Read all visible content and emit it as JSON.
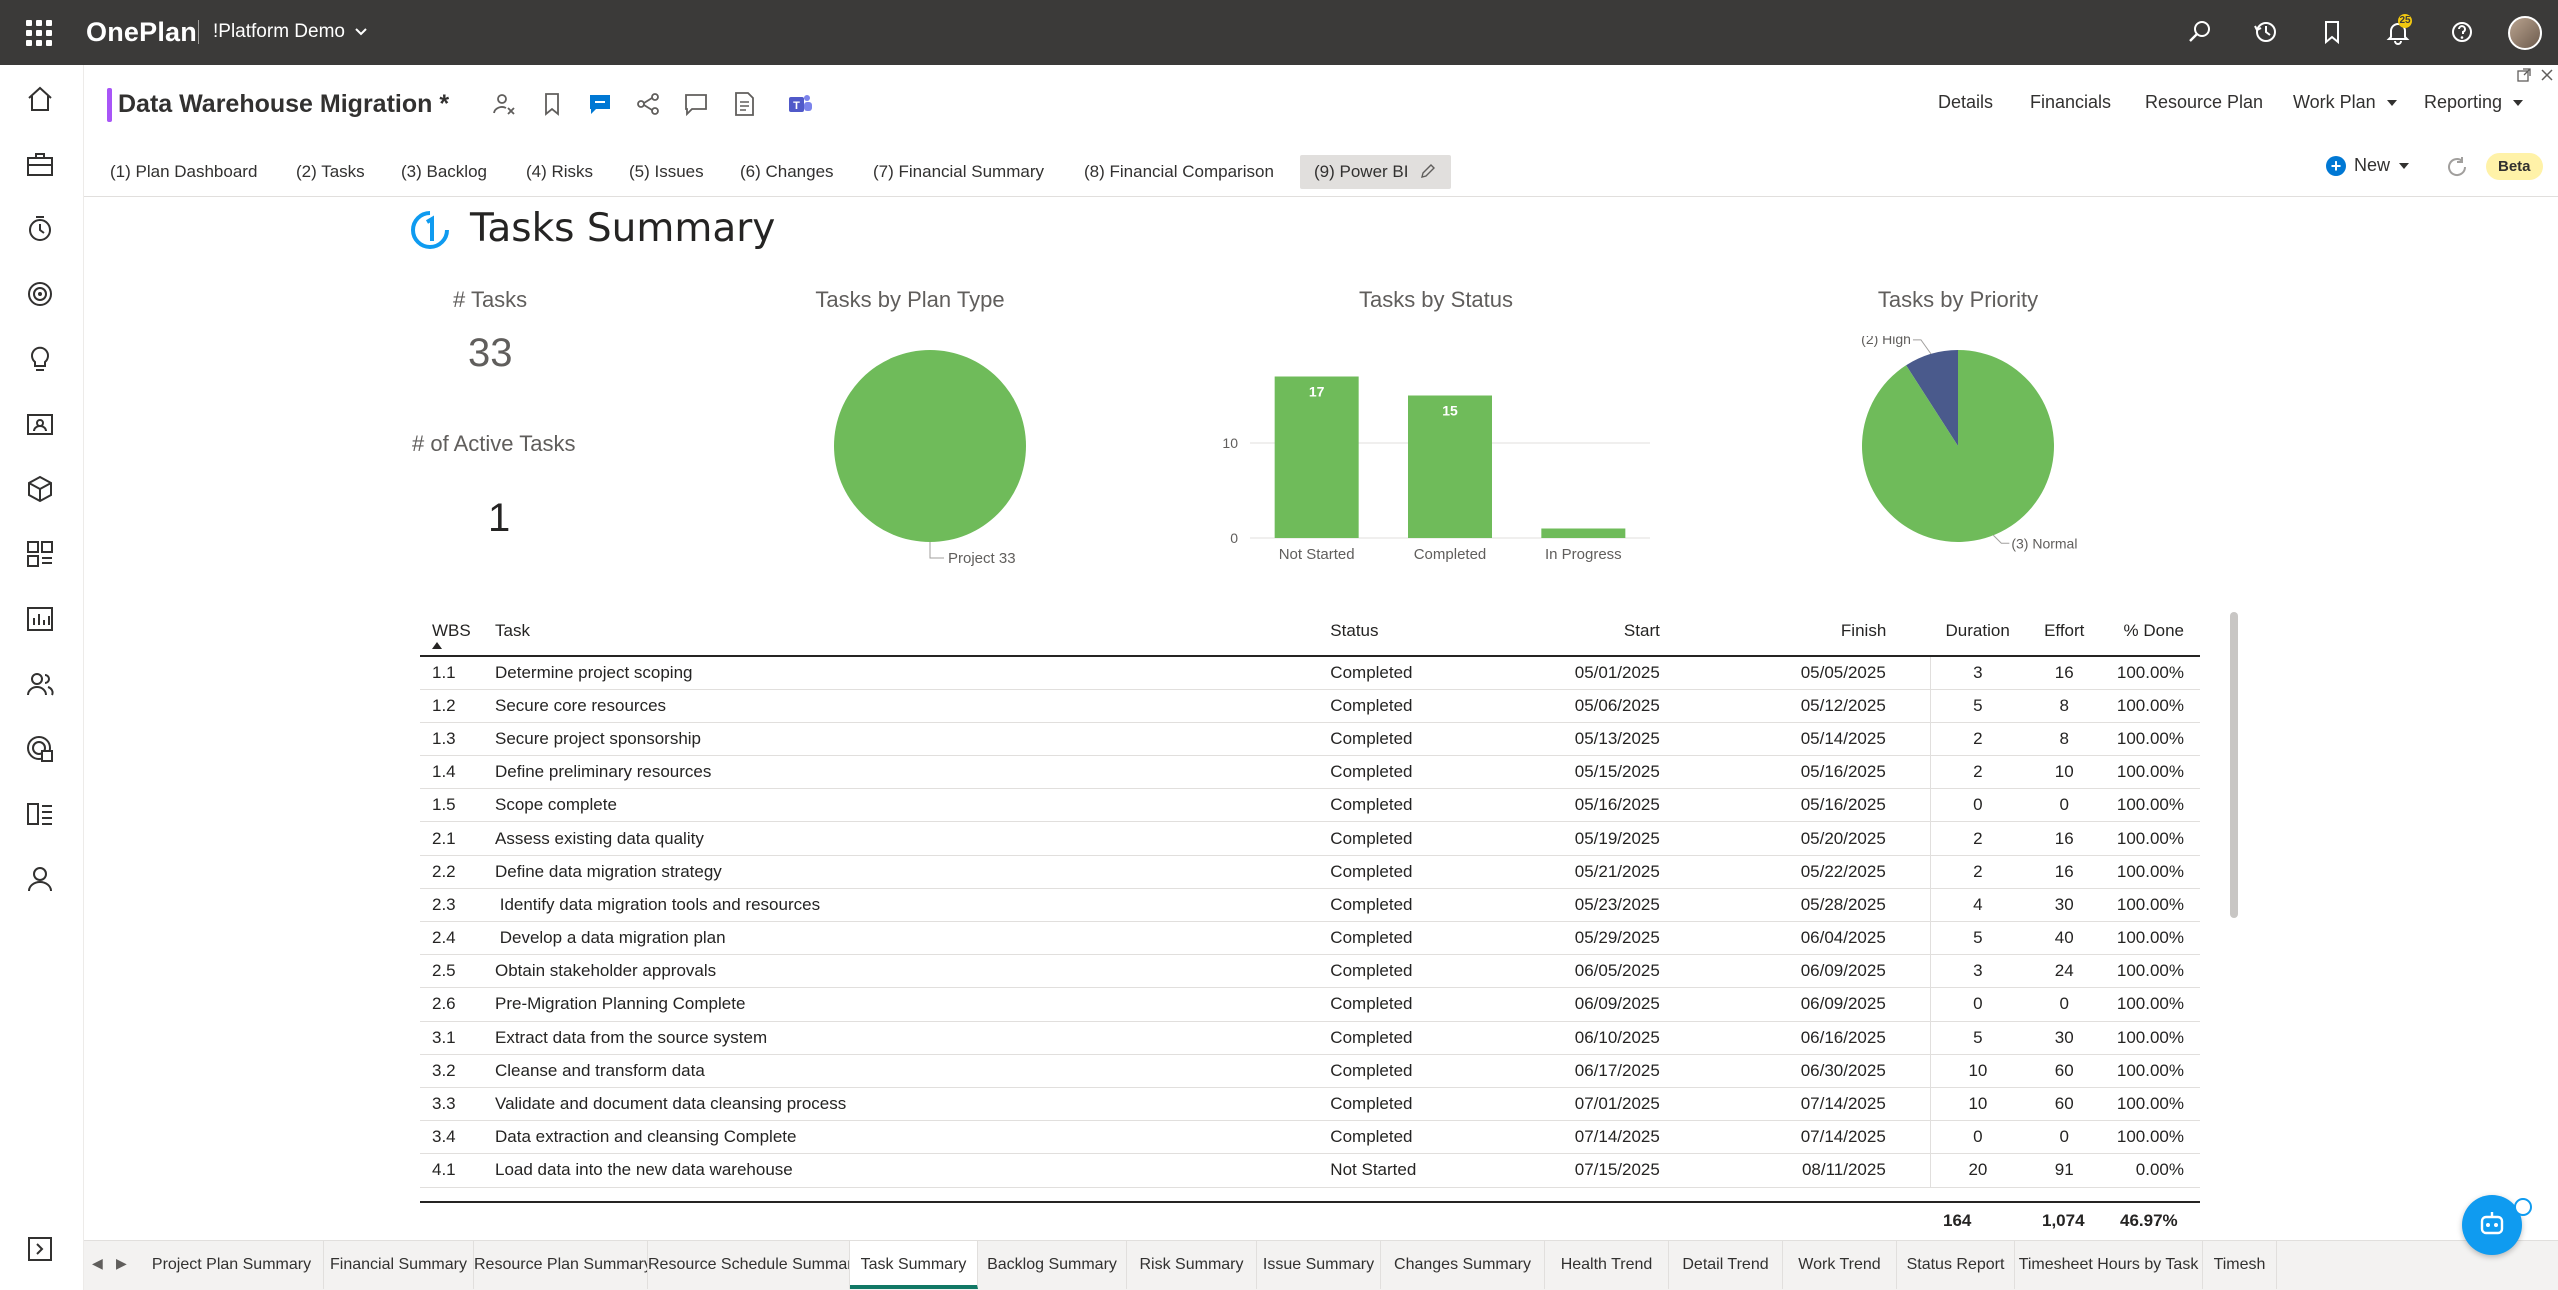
{
  "app": {
    "brand": "OnePlan",
    "tenant": "!Platform Demo",
    "notification_count": "25"
  },
  "plan": {
    "title": "Data Warehouse Migration *",
    "nav": [
      {
        "label": "Details"
      },
      {
        "label": "Financials"
      },
      {
        "label": "Resource Plan"
      },
      {
        "label": "Work Plan"
      },
      {
        "label": "Reporting"
      }
    ]
  },
  "report_tabs": [
    "(1) Plan Dashboard",
    "(2) Tasks",
    "(3) Backlog",
    "(4) Risks",
    "(5) Issues",
    "(6) Changes",
    "(7) Financial Summary",
    "(8) Financial Comparison",
    "(9) Power BI"
  ],
  "toolbar": {
    "new_label": "New",
    "beta_label": "Beta"
  },
  "report": {
    "title": "Tasks Summary",
    "kpis": {
      "tasks_label": "# Tasks",
      "tasks_value": "33",
      "active_label": "# of Active Tasks",
      "active_value": "1"
    },
    "chart_titles": {
      "plan_type": "Tasks by Plan Type",
      "status": "Tasks by Status",
      "priority": "Tasks by Priority"
    }
  },
  "chart_data": [
    {
      "type": "pie",
      "title": "Tasks by Plan Type",
      "labels": [
        "Project"
      ],
      "values": [
        33
      ],
      "colors": [
        "#6fbb5a"
      ]
    },
    {
      "type": "bar",
      "title": "Tasks by Status",
      "categories": [
        "Not Started",
        "Completed",
        "In Progress"
      ],
      "values": [
        17,
        15,
        1
      ],
      "yticks": [
        "0",
        "10"
      ],
      "ylim": [
        0,
        20
      ],
      "color": "#6fbb5a"
    },
    {
      "type": "pie",
      "title": "Tasks by Priority",
      "labels": [
        "(2) High",
        "(3) Normal"
      ],
      "values": [
        3,
        30
      ],
      "colors": [
        "#4a5a8c",
        "#6fbb5a"
      ]
    }
  ],
  "table": {
    "columns": [
      "WBS",
      "Task",
      "Status",
      "Start",
      "Finish",
      "Duration",
      "Effort",
      "% Done"
    ],
    "rows": [
      [
        "1.1",
        "Determine project scoping",
        "Completed",
        "05/01/2025",
        "05/05/2025",
        "3",
        "16",
        "100.00%"
      ],
      [
        "1.2",
        "Secure core resources",
        "Completed",
        "05/06/2025",
        "05/12/2025",
        "5",
        "8",
        "100.00%"
      ],
      [
        "1.3",
        "Secure project sponsorship",
        "Completed",
        "05/13/2025",
        "05/14/2025",
        "2",
        "8",
        "100.00%"
      ],
      [
        "1.4",
        "Define preliminary resources",
        "Completed",
        "05/15/2025",
        "05/16/2025",
        "2",
        "10",
        "100.00%"
      ],
      [
        "1.5",
        "Scope complete",
        "Completed",
        "05/16/2025",
        "05/16/2025",
        "0",
        "0",
        "100.00%"
      ],
      [
        "2.1",
        "Assess existing data quality",
        "Completed",
        "05/19/2025",
        "05/20/2025",
        "2",
        "16",
        "100.00%"
      ],
      [
        "2.2",
        "Define data migration strategy",
        "Completed",
        "05/21/2025",
        "05/22/2025",
        "2",
        "16",
        "100.00%"
      ],
      [
        "2.3",
        " Identify data migration tools and resources",
        "Completed",
        "05/23/2025",
        "05/28/2025",
        "4",
        "30",
        "100.00%"
      ],
      [
        "2.4",
        " Develop a data migration plan",
        "Completed",
        "05/29/2025",
        "06/04/2025",
        "5",
        "40",
        "100.00%"
      ],
      [
        "2.5",
        "Obtain stakeholder approvals",
        "Completed",
        "06/05/2025",
        "06/09/2025",
        "3",
        "24",
        "100.00%"
      ],
      [
        "2.6",
        "Pre-Migration Planning Complete",
        "Completed",
        "06/09/2025",
        "06/09/2025",
        "0",
        "0",
        "100.00%"
      ],
      [
        "3.1",
        "Extract data from the source system",
        "Completed",
        "06/10/2025",
        "06/16/2025",
        "5",
        "30",
        "100.00%"
      ],
      [
        "3.2",
        "Cleanse and transform data",
        "Completed",
        "06/17/2025",
        "06/30/2025",
        "10",
        "60",
        "100.00%"
      ],
      [
        "3.3",
        "Validate and document data cleansing process",
        "Completed",
        "07/01/2025",
        "07/14/2025",
        "10",
        "60",
        "100.00%"
      ],
      [
        "3.4",
        "Data extraction and cleansing Complete",
        "Completed",
        "07/14/2025",
        "07/14/2025",
        "0",
        "0",
        "100.00%"
      ],
      [
        "4.1",
        "Load data into the new data warehouse",
        "Not Started",
        "07/15/2025",
        "08/11/2025",
        "20",
        "91",
        "0.00%"
      ]
    ],
    "totals": {
      "duration": "164",
      "effort": "1,074",
      "pct_done": "46.97%"
    }
  },
  "page_tabs": [
    "Project Plan Summary",
    "Financial Summary",
    "Resource Plan Summary",
    "Resource Schedule Summary",
    "Task Summary",
    "Backlog Summary",
    "Risk Summary",
    "Issue Summary",
    "Changes Summary",
    "Health Trend",
    "Detail Trend",
    "Work Trend",
    "Status Report",
    "Timesheet Hours by Task",
    "Timesh"
  ],
  "active_page_tab": "Task Summary"
}
